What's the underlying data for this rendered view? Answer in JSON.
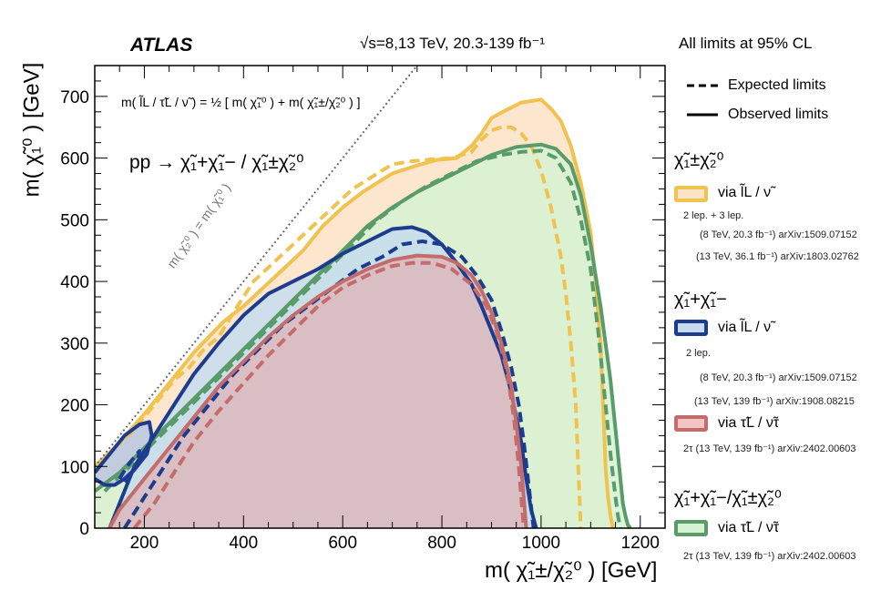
{
  "header": {
    "experiment": "ATLAS",
    "energy_lumi": "√s=8,13 TeV, 20.3-139 fb⁻¹",
    "cl_note": "All limits at 95% CL"
  },
  "chart_data": {
    "type": "area",
    "title": "",
    "xlabel": "m( χ̃₁±/χ̃₂⁰ ) [GeV]",
    "ylabel": "m( χ̃₁⁰ ) [GeV]",
    "xlim": [
      100,
      1250
    ],
    "ylim": [
      0,
      750
    ],
    "xticks": [
      200,
      400,
      600,
      800,
      1000,
      1200
    ],
    "yticks": [
      0,
      100,
      200,
      300,
      400,
      500,
      600,
      700
    ],
    "annotations": {
      "slepton_mass_relation": "m( l̃L / τ̃L / ν̃ ) = ½ [ m( χ̃₁⁰ ) + m( χ̃₁±/χ̃₂⁰ ) ]",
      "process": "pp → χ̃₁+χ̃₁− / χ̃₁±χ̃₂⁰",
      "diagonal_label": "m( χ̃₂⁰ ) = m( χ̃₁⁰ )"
    },
    "legend_styles": {
      "expected": "Expected limits",
      "observed": "Observed limits"
    },
    "legend_groups": [
      {
        "header": "χ̃₁±χ̃₂⁰",
        "entries": [
          {
            "label": "via l̃L / ν̃",
            "color": "#f0c24f",
            "fill": "#fbe3c6",
            "notes": [
              "2 lep. + 3 lep.",
              "(8 TeV, 20.3 fb⁻¹)   arXiv:1509.07152",
              "(13 TeV, 36.1 fb⁻¹)   arXiv:1803.02762"
            ]
          }
        ]
      },
      {
        "header": "χ̃₁+χ̃₁−",
        "entries": [
          {
            "label": "via l̃L / ν̃",
            "color": "#1d3c8e",
            "fill": "#c6dcee",
            "notes": [
              "2 lep.",
              "(8 TeV, 20.3 fb⁻¹)  arXiv:1509.07152",
              "(13 TeV, 139 fb⁻¹)   arXiv:1908.08215"
            ]
          },
          {
            "label": "via τ̃L / ν̃τ",
            "color": "#c46b6b",
            "fill": "#f5c5c5",
            "notes": [
              "2τ (13 TeV, 139 fb⁻¹)  arXiv:2402.00603"
            ]
          }
        ]
      },
      {
        "header": "χ̃₁+χ̃₁−/χ̃₁±χ̃₂⁰",
        "entries": [
          {
            "label": "via τ̃L / ν̃τ",
            "color": "#5a9b6a",
            "fill": "#d6f2d2",
            "notes": [
              "2τ (13 TeV, 139 fb⁻¹)   arXiv:2402.00603"
            ]
          }
        ]
      }
    ],
    "series": [
      {
        "name": "χ̃₁±χ̃₂⁰ via l̃L/ν̃ observed",
        "style": "solid",
        "color": "#f0c24f",
        "fill": "#fbe3c6",
        "filled": true,
        "x": [
          100,
          140,
          200,
          260,
          300,
          330,
          360,
          400,
          440,
          480,
          520,
          560,
          600,
          640,
          700,
          750,
          790,
          830,
          860,
          880,
          900,
          930,
          960,
          1000,
          1020,
          1040,
          1060,
          1080,
          1100,
          1110,
          1120,
          1125,
          1130,
          1135,
          1140,
          1145
        ],
        "y": [
          100,
          130,
          185,
          245,
          285,
          310,
          335,
          360,
          390,
          420,
          450,
          490,
          520,
          545,
          575,
          588,
          597,
          600,
          620,
          640,
          665,
          678,
          690,
          695,
          680,
          660,
          620,
          560,
          480,
          400,
          300,
          200,
          100,
          50,
          20,
          0
        ]
      },
      {
        "name": "χ̃₁±χ̃₂⁰ via l̃L/ν̃ expected",
        "style": "dashed",
        "color": "#f0c24f",
        "x": [
          140,
          180,
          220,
          260,
          290,
          320,
          350,
          380,
          420,
          460,
          500,
          540,
          580,
          620,
          660,
          700,
          740,
          780,
          820,
          860,
          880,
          900,
          920,
          940,
          960,
          980,
          1000,
          1020,
          1040,
          1050,
          1060,
          1070,
          1075,
          1080
        ],
        "y": [
          130,
          160,
          200,
          240,
          260,
          290,
          310,
          350,
          400,
          430,
          460,
          490,
          520,
          550,
          570,
          590,
          595,
          598,
          600,
          610,
          630,
          645,
          650,
          650,
          640,
          620,
          580,
          520,
          440,
          380,
          300,
          200,
          100,
          0
        ]
      },
      {
        "name": "τ̃ combined observed",
        "style": "solid",
        "color": "#5a9b6a",
        "fill": "#d6f2d2",
        "filled": true,
        "x": [
          100,
          150,
          200,
          250,
          300,
          350,
          400,
          450,
          500,
          550,
          600,
          650,
          700,
          750,
          800,
          850,
          900,
          950,
          1000,
          1030,
          1060,
          1080,
          1100,
          1120,
          1140,
          1150,
          1160,
          1165,
          1170,
          1175,
          1180
        ],
        "y": [
          60,
          90,
          130,
          170,
          210,
          250,
          290,
          330,
          370,
          410,
          450,
          490,
          520,
          545,
          565,
          585,
          605,
          618,
          622,
          615,
          590,
          540,
          460,
          360,
          240,
          160,
          80,
          40,
          20,
          5,
          0
        ]
      },
      {
        "name": "τ̃ combined expected",
        "style": "dashed",
        "color": "#5a9b6a",
        "x": [
          120,
          170,
          220,
          270,
          320,
          370,
          420,
          470,
          520,
          570,
          620,
          670,
          720,
          770,
          820,
          870,
          920,
          960,
          1000,
          1030,
          1060,
          1080,
          1100,
          1115,
          1130,
          1140,
          1150,
          1155,
          1160
        ],
        "y": [
          60,
          100,
          140,
          180,
          220,
          260,
          300,
          340,
          380,
          420,
          460,
          500,
          530,
          555,
          575,
          595,
          605,
          610,
          612,
          600,
          560,
          500,
          420,
          320,
          200,
          120,
          50,
          20,
          0
        ]
      },
      {
        "name": "χ̃₁+χ̃₁− via l̃L/ν̃ observed",
        "style": "solid",
        "color": "#1d3c8e",
        "fill": "#c6dcee",
        "filled": true,
        "x": [
          130,
          150,
          180,
          220,
          260,
          300,
          350,
          400,
          450,
          500,
          550,
          600,
          650,
          700,
          740,
          770,
          800,
          830,
          860,
          880,
          900,
          920,
          940,
          950,
          960,
          970,
          980,
          990
        ],
        "y": [
          0,
          40,
          100,
          150,
          200,
          250,
          300,
          345,
          380,
          400,
          420,
          445,
          465,
          485,
          488,
          480,
          460,
          430,
          395,
          360,
          320,
          280,
          220,
          180,
          140,
          80,
          30,
          0
        ]
      },
      {
        "name": "χ̃₁+χ̃₁− via l̃L/ν̃ expected",
        "style": "dashed",
        "color": "#1d3c8e",
        "x": [
          160,
          200,
          240,
          280,
          330,
          380,
          430,
          480,
          530,
          580,
          630,
          680,
          720,
          760,
          800,
          840,
          870,
          900,
          920,
          940,
          955,
          965,
          975,
          985
        ],
        "y": [
          0,
          50,
          100,
          150,
          200,
          250,
          290,
          330,
          360,
          390,
          420,
          440,
          460,
          465,
          460,
          440,
          410,
          370,
          320,
          260,
          200,
          140,
          70,
          0
        ]
      },
      {
        "name": "χ̃₁+χ̃₁− low-mass island observed",
        "style": "solid",
        "color": "#1d3c8e",
        "fill": "#b9c6e2",
        "filled": true,
        "x": [
          100,
          130,
          160,
          190,
          210,
          215,
          205,
          180,
          160,
          140,
          120,
          100
        ],
        "y": [
          90,
          120,
          150,
          168,
          172,
          150,
          120,
          95,
          80,
          70,
          70,
          80
        ]
      },
      {
        "name": "χ̃₁+χ̃₁− low-mass island expected",
        "style": "dashed",
        "color": "#1d3c8e",
        "x": [
          150,
          165,
          180,
          190,
          185,
          170,
          160
        ],
        "y": [
          80,
          100,
          115,
          125,
          100,
          85,
          75
        ]
      },
      {
        "name": "χ̃₁+χ̃₁− via τ̃L/ν̃τ observed",
        "style": "solid",
        "color": "#c46b6b",
        "fill": "#dcb9bd",
        "filled": true,
        "x": [
          130,
          150,
          200,
          250,
          300,
          350,
          400,
          450,
          500,
          550,
          600,
          650,
          700,
          750,
          800,
          830,
          860,
          880,
          900,
          920,
          940,
          950,
          960,
          965,
          970
        ],
        "y": [
          0,
          30,
          80,
          130,
          180,
          230,
          270,
          310,
          345,
          375,
          400,
          420,
          435,
          442,
          440,
          430,
          410,
          385,
          350,
          300,
          230,
          170,
          100,
          50,
          0
        ]
      },
      {
        "name": "χ̃₁+χ̃₁− via τ̃L/ν̃τ expected",
        "style": "dashed",
        "color": "#c46b6b",
        "x": [
          180,
          220,
          260,
          300,
          350,
          400,
          450,
          500,
          550,
          600,
          650,
          700,
          740,
          780,
          820,
          860,
          890,
          910,
          930,
          945,
          955,
          965
        ],
        "y": [
          0,
          40,
          90,
          140,
          190,
          235,
          280,
          320,
          360,
          390,
          410,
          425,
          430,
          430,
          420,
          395,
          360,
          320,
          260,
          180,
          100,
          0
        ]
      },
      {
        "name": "m( χ̃₂⁰ ) = m( χ̃₁⁰ ) diagonal",
        "style": "dotted",
        "color": "#6b6b6b",
        "x": [
          100,
          750
        ],
        "y": [
          100,
          750
        ]
      }
    ]
  }
}
